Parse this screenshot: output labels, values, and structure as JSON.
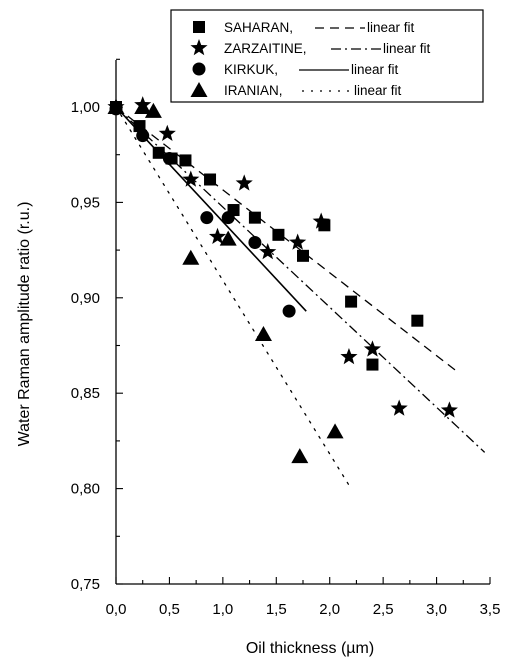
{
  "chart_data": {
    "type": "scatter",
    "xlabel": "Oil thickness (µm)",
    "ylabel": "Water Raman amplitude ratio (r.u.)",
    "xlim": [
      0.0,
      3.5
    ],
    "ylim": [
      0.75,
      1.0
    ],
    "y_axis_top": 1.03,
    "x_ticks": [
      0.0,
      0.5,
      1.0,
      1.5,
      2.0,
      2.5,
      3.0,
      3.5
    ],
    "x_tick_labels": [
      "0,0",
      "0,5",
      "1,0",
      "1,5",
      "2,0",
      "2,5",
      "3,0",
      "3,5"
    ],
    "y_ticks": [
      0.75,
      0.8,
      0.85,
      0.9,
      0.95,
      1.0
    ],
    "y_tick_labels": [
      "0,75",
      "0,80",
      "0,85",
      "0,90",
      "0,95",
      "1,00"
    ],
    "grid": false,
    "legend_position": "top-right",
    "fit_label": "linear fit",
    "series": [
      {
        "name": "SAHARAN,",
        "marker": "square",
        "line_style": "dashed",
        "points": [
          [
            0.0,
            1.0
          ],
          [
            0.22,
            0.99
          ],
          [
            0.4,
            0.976
          ],
          [
            0.52,
            0.973
          ],
          [
            0.65,
            0.972
          ],
          [
            0.88,
            0.962
          ],
          [
            1.1,
            0.946
          ],
          [
            1.3,
            0.942
          ],
          [
            1.52,
            0.933
          ],
          [
            1.75,
            0.922
          ],
          [
            1.95,
            0.938
          ],
          [
            2.2,
            0.898
          ],
          [
            2.4,
            0.865
          ],
          [
            2.82,
            0.888
          ]
        ],
        "fit": [
          [
            0.0,
            1.0
          ],
          [
            3.2,
            0.861
          ]
        ]
      },
      {
        "name": "ZARZAITINE,",
        "marker": "star",
        "line_style": "dashdot",
        "points": [
          [
            0.0,
            1.0
          ],
          [
            0.25,
            1.001
          ],
          [
            0.48,
            0.986
          ],
          [
            0.7,
            0.962
          ],
          [
            0.95,
            0.932
          ],
          [
            1.2,
            0.96
          ],
          [
            1.42,
            0.924
          ],
          [
            1.7,
            0.929
          ],
          [
            1.92,
            0.94
          ],
          [
            2.18,
            0.869
          ],
          [
            2.4,
            0.873
          ],
          [
            2.65,
            0.842
          ],
          [
            3.12,
            0.841
          ]
        ],
        "fit": [
          [
            0.0,
            1.0
          ],
          [
            3.45,
            0.819
          ]
        ]
      },
      {
        "name": "KIRKUK,",
        "marker": "circle",
        "line_style": "solid",
        "points": [
          [
            0.0,
            0.999
          ],
          [
            0.25,
            0.985
          ],
          [
            0.5,
            0.973
          ],
          [
            0.85,
            0.942
          ],
          [
            1.05,
            0.942
          ],
          [
            1.3,
            0.929
          ],
          [
            1.62,
            0.893
          ]
        ],
        "fit": [
          [
            0.0,
            1.0
          ],
          [
            1.78,
            0.893
          ]
        ]
      },
      {
        "name": "IRANIAN,",
        "marker": "triangle",
        "line_style": "dotted",
        "points": [
          [
            0.0,
            1.0
          ],
          [
            0.25,
            1.0
          ],
          [
            0.35,
            0.998
          ],
          [
            0.7,
            0.921
          ],
          [
            1.05,
            0.931
          ],
          [
            1.38,
            0.881
          ],
          [
            1.72,
            0.817
          ],
          [
            2.05,
            0.83
          ]
        ],
        "fit": [
          [
            0.0,
            1.0
          ],
          [
            2.2,
            0.8
          ]
        ]
      }
    ]
  }
}
